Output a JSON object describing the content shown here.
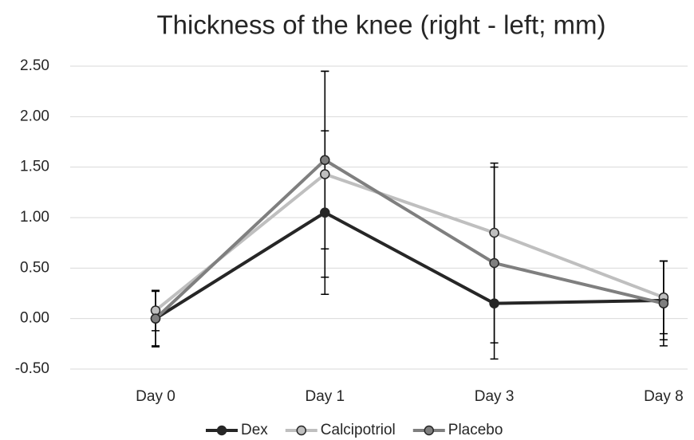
{
  "chart_data": {
    "type": "line",
    "title": "Thickness of the knee (right - left; mm)",
    "categories": [
      "Day 0",
      "Day 1",
      "Day 3",
      "Day 8"
    ],
    "series": [
      {
        "name": "Dex",
        "color": "#262626",
        "values": [
          0.0,
          1.05,
          0.15,
          0.18
        ],
        "errors": [
          0.27,
          0.81,
          0.39,
          0.39
        ]
      },
      {
        "name": "Calcipotriol",
        "color": "#bfbfbf",
        "values": [
          0.08,
          1.43,
          0.85,
          0.21
        ],
        "errors": [
          0.2,
          1.02,
          0.69,
          0.36
        ]
      },
      {
        "name": "Placebo",
        "color": "#7f7f7f",
        "values": [
          0.0,
          1.57,
          0.55,
          0.15
        ],
        "errors": [
          0.28,
          0.88,
          0.95,
          0.42
        ]
      }
    ],
    "ylim": [
      -0.5,
      2.5
    ],
    "yticks": [
      {
        "value": -0.5,
        "label": "-0.50"
      },
      {
        "value": 0,
        "label": "0.00"
      },
      {
        "value": 0.5,
        "label": "0.50"
      },
      {
        "value": 1,
        "label": "1.00"
      },
      {
        "value": 1.5,
        "label": "1.50"
      },
      {
        "value": 2,
        "label": "2.00"
      },
      {
        "value": 2.5,
        "label": "2.50"
      }
    ],
    "grid": true,
    "legend": "bottom"
  }
}
